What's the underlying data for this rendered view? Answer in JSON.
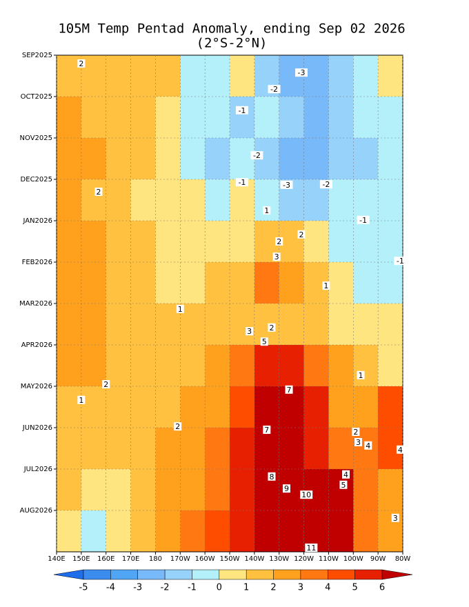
{
  "chart_data": {
    "type": "contour",
    "title": "105M Temp Pentad Anomaly, ending Sep 02 2026",
    "subtitle": "(2°S-2°N)",
    "y": [
      "SEP2025",
      "OCT2025",
      "NOV2025",
      "DEC2025",
      "JAN2026",
      "FEB2026",
      "MAR2026",
      "APR2026",
      "MAY2026",
      "JUN2026",
      "JUL2026",
      "AUG2026"
    ],
    "xlim": [
      140,
      280
    ],
    "xticks": [
      {
        "value": 140,
        "label": "140E"
      },
      {
        "value": 150,
        "label": "150E"
      },
      {
        "value": 160,
        "label": "160E"
      },
      {
        "value": 170,
        "label": "170E"
      },
      {
        "value": 180,
        "label": "180"
      },
      {
        "value": 190,
        "label": "170W"
      },
      {
        "value": 200,
        "label": "160W"
      },
      {
        "value": 210,
        "label": "150W"
      },
      {
        "value": 220,
        "label": "140W"
      },
      {
        "value": 230,
        "label": "130W"
      },
      {
        "value": 240,
        "label": "120W"
      },
      {
        "value": 250,
        "label": "110W"
      },
      {
        "value": 260,
        "label": "100W"
      },
      {
        "value": 270,
        "label": "90W"
      },
      {
        "value": 280,
        "label": "80W"
      }
    ],
    "grid": true,
    "x": [
      145,
      155,
      165,
      175,
      185,
      195,
      205,
      215,
      225,
      235,
      245,
      255,
      265,
      275
    ],
    "z": [
      [
        1.5,
        1.5,
        1.5,
        1.5,
        1,
        -0.5,
        -0.5,
        0.5,
        -1.5,
        -2.5,
        -2.5,
        -1.5,
        -0.5,
        0.5
      ],
      [
        2.5,
        1.5,
        1.5,
        1.5,
        0.5,
        -0.5,
        -0.5,
        -1.5,
        -0.5,
        -1.5,
        -2.5,
        -1.5,
        -0.5,
        -0.5
      ],
      [
        2.5,
        2.5,
        1.5,
        1.5,
        0.5,
        -0.5,
        -1.5,
        -0.5,
        -1.5,
        -2.5,
        -2.5,
        -1.5,
        -1.5,
        -0.5
      ],
      [
        2.5,
        1.5,
        1.5,
        0.5,
        0.5,
        0.5,
        -0.5,
        0.5,
        -0.5,
        -1.5,
        -1.5,
        -0.5,
        -0.5,
        -0.5
      ],
      [
        2.5,
        2.5,
        1.5,
        1.5,
        0.5,
        0.5,
        0.5,
        0.5,
        1.5,
        1.5,
        0.5,
        -0.5,
        -0.5,
        -0.5
      ],
      [
        2.5,
        2.5,
        1.5,
        1.5,
        0.5,
        0.5,
        1.5,
        1.5,
        3.5,
        2.5,
        1.5,
        0.5,
        -0.5,
        -0.5
      ],
      [
        2.5,
        2.5,
        1.5,
        1.5,
        1.5,
        1.5,
        1.5,
        1.5,
        1.5,
        1.5,
        1.5,
        0.5,
        0.5,
        0.5
      ],
      [
        2.5,
        2.5,
        1.5,
        1.5,
        1.5,
        1.5,
        2.5,
        3.5,
        5.5,
        5.5,
        3.5,
        2.5,
        1.5,
        0.5
      ],
      [
        1.5,
        1.5,
        1.5,
        1.5,
        1.5,
        2.5,
        2.5,
        4.5,
        6.5,
        6.5,
        5.5,
        2.5,
        2.5,
        4.5
      ],
      [
        1.5,
        1.5,
        1.5,
        1.5,
        2.5,
        2.5,
        3.5,
        5.5,
        6.5,
        6.5,
        5.5,
        3.5,
        3.5,
        4.5
      ],
      [
        1.5,
        0.5,
        0.5,
        1.5,
        2.5,
        2.5,
        3.5,
        5.5,
        7,
        7,
        8,
        6.5,
        3.5,
        2.5
      ],
      [
        0.5,
        -0.5,
        0.5,
        1.5,
        2.5,
        3.5,
        4.5,
        5.5,
        8,
        9,
        9,
        6.5,
        3.5,
        2.5
      ]
    ],
    "levels": [
      -5,
      -4,
      -3,
      -2,
      -1,
      0,
      1,
      2,
      3,
      4,
      5,
      6
    ],
    "colors": [
      "#1e6eeb",
      "#3c8cf0",
      "#50a5f5",
      "#78b9fa",
      "#96d2fa",
      "#b4f0fa",
      "#ffe57f",
      "#ffc13f",
      "#ffa11d",
      "#ff7812",
      "#ff4d00",
      "#e62000",
      "#c00000"
    ],
    "contour_labels": [
      {
        "value": 2,
        "lon": 150,
        "t": 0.2
      },
      {
        "value": -3,
        "lon": 239,
        "t": 0.42
      },
      {
        "value": -2,
        "lon": 228,
        "t": 0.82
      },
      {
        "value": -1,
        "lon": 215,
        "t": 1.33
      },
      {
        "value": -2,
        "lon": 221,
        "t": 2.42
      },
      {
        "value": -1,
        "lon": 215,
        "t": 3.07
      },
      {
        "value": -3,
        "lon": 233,
        "t": 3.13
      },
      {
        "value": -2,
        "lon": 249,
        "t": 3.12
      },
      {
        "value": 2,
        "lon": 157,
        "t": 3.3
      },
      {
        "value": 1,
        "lon": 225,
        "t": 3.75
      },
      {
        "value": -1,
        "lon": 264,
        "t": 3.98
      },
      {
        "value": 2,
        "lon": 230,
        "t": 4.5
      },
      {
        "value": 2,
        "lon": 239,
        "t": 4.33
      },
      {
        "value": 3,
        "lon": 229,
        "t": 4.87
      },
      {
        "value": 1,
        "lon": 249,
        "t": 5.57
      },
      {
        "value": -1,
        "lon": 279,
        "t": 4.97
      },
      {
        "value": 1,
        "lon": 190,
        "t": 6.13
      },
      {
        "value": 3,
        "lon": 218,
        "t": 6.67
      },
      {
        "value": 2,
        "lon": 227,
        "t": 6.58
      },
      {
        "value": 5,
        "lon": 224,
        "t": 6.92
      },
      {
        "value": 1,
        "lon": 263,
        "t": 7.73
      },
      {
        "value": 2,
        "lon": 160,
        "t": 7.95
      },
      {
        "value": 1,
        "lon": 150,
        "t": 8.33
      },
      {
        "value": 7,
        "lon": 234,
        "t": 8.08
      },
      {
        "value": 2,
        "lon": 189,
        "t": 8.97
      },
      {
        "value": 7,
        "lon": 225,
        "t": 9.05
      },
      {
        "value": 2,
        "lon": 261,
        "t": 9.1
      },
      {
        "value": 3,
        "lon": 262,
        "t": 9.35
      },
      {
        "value": 4,
        "lon": 266,
        "t": 9.43
      },
      {
        "value": 4,
        "lon": 279,
        "t": 9.53
      },
      {
        "value": 4,
        "lon": 257,
        "t": 10.13
      },
      {
        "value": 5,
        "lon": 256,
        "t": 10.38
      },
      {
        "value": 8,
        "lon": 227,
        "t": 10.18
      },
      {
        "value": 9,
        "lon": 233,
        "t": 10.47
      },
      {
        "value": 10,
        "lon": 241,
        "t": 10.62
      },
      {
        "value": 3,
        "lon": 277,
        "t": 11.18
      },
      {
        "value": 11,
        "lon": 243,
        "t": 11.9
      }
    ]
  }
}
